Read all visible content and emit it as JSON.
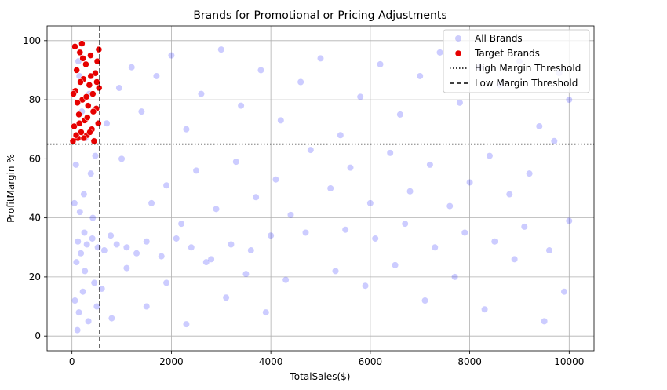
{
  "chart_data": {
    "type": "scatter",
    "title": "Brands for Promotional or Pricing Adjustments",
    "xlabel": "TotalSales($)",
    "ylabel": "ProfitMargin %",
    "xlim": [
      -500,
      10500
    ],
    "ylim": [
      -5,
      105
    ],
    "xticks": [
      0,
      2000,
      4000,
      6000,
      8000,
      10000
    ],
    "yticks": [
      0,
      20,
      40,
      60,
      80,
      100
    ],
    "grid": true,
    "legend_position": "top-right",
    "legend": [
      {
        "label": "All Brands",
        "marker": "circle",
        "color": "#6f6ff5"
      },
      {
        "label": "Target Brands",
        "marker": "circle",
        "color": "#e60000"
      },
      {
        "label": "High Margin Threshold",
        "line": "dotted",
        "color": "#000000"
      },
      {
        "label": "Low Margin Threshold",
        "line": "dashed",
        "color": "#000000"
      }
    ],
    "reference_lines": [
      {
        "name": "High Margin Threshold",
        "orientation": "horizontal",
        "value": 64.97,
        "style": "dotted",
        "color": "#000000"
      },
      {
        "name": "Low Margin Threshold",
        "orientation": "vertical",
        "value": 560,
        "style": "dashed",
        "color": "#000000"
      }
    ],
    "series": [
      {
        "name": "All Brands",
        "color": "#0000ff",
        "alpha": 0.2,
        "points": [
          [
            120,
            32
          ],
          [
            180,
            28
          ],
          [
            250,
            35
          ],
          [
            300,
            31
          ],
          [
            90,
            25
          ],
          [
            410,
            33
          ],
          [
            520,
            30
          ],
          [
            650,
            29
          ],
          [
            780,
            34
          ],
          [
            900,
            31
          ],
          [
            1100,
            30
          ],
          [
            1300,
            28
          ],
          [
            1500,
            32
          ],
          [
            1800,
            27
          ],
          [
            2100,
            33
          ],
          [
            2400,
            30
          ],
          [
            2800,
            26
          ],
          [
            3200,
            31
          ],
          [
            3600,
            29
          ],
          [
            4000,
            34
          ],
          [
            60,
            12
          ],
          [
            140,
            8
          ],
          [
            220,
            15
          ],
          [
            330,
            5
          ],
          [
            450,
            18
          ],
          [
            160,
            42
          ],
          [
            240,
            48
          ],
          [
            380,
            55
          ],
          [
            470,
            61
          ],
          [
            80,
            58
          ],
          [
            700,
            72
          ],
          [
            950,
            84
          ],
          [
            1200,
            91
          ],
          [
            1400,
            76
          ],
          [
            1700,
            88
          ],
          [
            2000,
            95
          ],
          [
            2300,
            70
          ],
          [
            2600,
            82
          ],
          [
            3000,
            97
          ],
          [
            3400,
            78
          ],
          [
            3800,
            90
          ],
          [
            4200,
            73
          ],
          [
            4600,
            86
          ],
          [
            5000,
            94
          ],
          [
            5400,
            68
          ],
          [
            5800,
            81
          ],
          [
            6200,
            92
          ],
          [
            6600,
            75
          ],
          [
            7000,
            88
          ],
          [
            7400,
            96
          ],
          [
            7800,
            79
          ],
          [
            8200,
            91
          ],
          [
            8600,
            85
          ],
          [
            9000,
            93
          ],
          [
            9400,
            71
          ],
          [
            9800,
            89
          ],
          [
            10000,
            80
          ],
          [
            9700,
            66
          ],
          [
            9200,
            55
          ],
          [
            8800,
            48
          ],
          [
            8400,
            61
          ],
          [
            8000,
            52
          ],
          [
            7600,
            44
          ],
          [
            7200,
            58
          ],
          [
            6800,
            49
          ],
          [
            6400,
            62
          ],
          [
            6000,
            45
          ],
          [
            5600,
            57
          ],
          [
            5200,
            50
          ],
          [
            4800,
            63
          ],
          [
            4400,
            41
          ],
          [
            4100,
            53
          ],
          [
            3700,
            47
          ],
          [
            3300,
            59
          ],
          [
            2900,
            43
          ],
          [
            2500,
            56
          ],
          [
            2200,
            38
          ],
          [
            1900,
            51
          ],
          [
            1600,
            45
          ],
          [
            1000,
            60
          ],
          [
            5500,
            36
          ],
          [
            6100,
            33
          ],
          [
            6700,
            38
          ],
          [
            7300,
            30
          ],
          [
            7900,
            35
          ],
          [
            8500,
            32
          ],
          [
            9100,
            37
          ],
          [
            9600,
            29
          ],
          [
            10000,
            39
          ],
          [
            4700,
            35
          ],
          [
            5300,
            22
          ],
          [
            5900,
            17
          ],
          [
            6500,
            24
          ],
          [
            7100,
            12
          ],
          [
            7700,
            20
          ],
          [
            8300,
            9
          ],
          [
            8900,
            26
          ],
          [
            9500,
            5
          ],
          [
            9900,
            15
          ],
          [
            4300,
            19
          ],
          [
            3900,
            8
          ],
          [
            3500,
            21
          ],
          [
            3100,
            13
          ],
          [
            2700,
            25
          ],
          [
            2300,
            4
          ],
          [
            1900,
            18
          ],
          [
            1500,
            10
          ],
          [
            1100,
            23
          ],
          [
            800,
            6
          ],
          [
            600,
            16
          ],
          [
            150,
            88
          ],
          [
            200,
            76
          ],
          [
            270,
            67
          ],
          [
            130,
            93
          ],
          [
            350,
            82
          ],
          [
            50,
            45
          ],
          [
            110,
            2
          ],
          [
            260,
            22
          ],
          [
            420,
            40
          ],
          [
            500,
            10
          ]
        ]
      },
      {
        "name": "Target Brands",
        "color": "#e60000",
        "points": [
          [
            20,
            66
          ],
          [
            45,
            71
          ],
          [
            70,
            83
          ],
          [
            95,
            90
          ],
          [
            120,
            67
          ],
          [
            140,
            75
          ],
          [
            160,
            96
          ],
          [
            185,
            69
          ],
          [
            210,
            80
          ],
          [
            230,
            87
          ],
          [
            255,
            73
          ],
          [
            280,
            92
          ],
          [
            300,
            68
          ],
          [
            325,
            78
          ],
          [
            350,
            85
          ],
          [
            375,
            95
          ],
          [
            400,
            70
          ],
          [
            420,
            82
          ],
          [
            445,
            66
          ],
          [
            470,
            89
          ],
          [
            490,
            77
          ],
          [
            510,
            93
          ],
          [
            530,
            72
          ],
          [
            545,
            84
          ],
          [
            60,
            98
          ],
          [
            110,
            79
          ],
          [
            170,
            86
          ],
          [
            240,
            67
          ],
          [
            310,
            74
          ],
          [
            380,
            88
          ],
          [
            30,
            82
          ],
          [
            85,
            68
          ],
          [
            150,
            72
          ],
          [
            220,
            94
          ],
          [
            290,
            81
          ],
          [
            360,
            69
          ],
          [
            430,
            76
          ],
          [
            500,
            86
          ],
          [
            540,
            97
          ],
          [
            200,
            99
          ]
        ]
      }
    ]
  }
}
